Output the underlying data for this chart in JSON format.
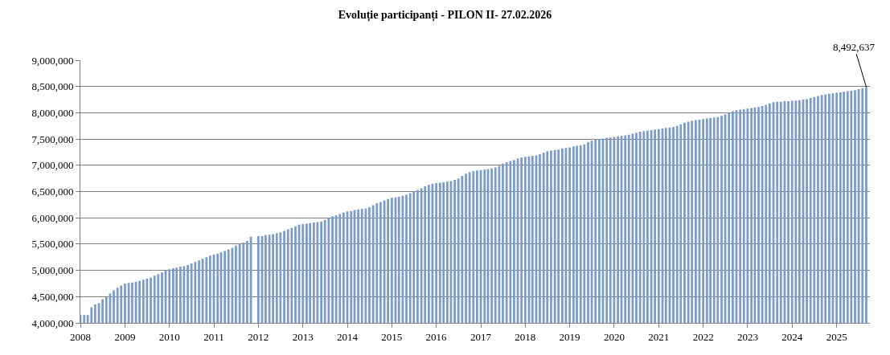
{
  "chart_data": {
    "type": "bar",
    "title": "Evoluție participanți - PILON II- 27.02.2026",
    "x": [
      "2008-01",
      "2008-02",
      "2008-03",
      "2008-04",
      "2008-05",
      "2008-06",
      "2008-07",
      "2008-08",
      "2008-09",
      "2008-10",
      "2008-11",
      "2008-12",
      "2009-01",
      "2009-02",
      "2009-03",
      "2009-04",
      "2009-05",
      "2009-06",
      "2009-07",
      "2009-08",
      "2009-09",
      "2009-10",
      "2009-11",
      "2009-12",
      "2010-01",
      "2010-02",
      "2010-03",
      "2010-04",
      "2010-05",
      "2010-06",
      "2010-07",
      "2010-08",
      "2010-09",
      "2010-10",
      "2010-11",
      "2010-12",
      "2011-01",
      "2011-02",
      "2011-03",
      "2011-04",
      "2011-05",
      "2011-06",
      "2011-07",
      "2011-08",
      "2011-09",
      "2011-10",
      "2011-11",
      "2011-12",
      "2012-01",
      "2012-02",
      "2012-03",
      "2012-04",
      "2012-05",
      "2012-06",
      "2012-07",
      "2012-08",
      "2012-09",
      "2012-10",
      "2012-11",
      "2012-12",
      "2013-01",
      "2013-02",
      "2013-03",
      "2013-04",
      "2013-05",
      "2013-06",
      "2013-07",
      "2013-08",
      "2013-09",
      "2013-10",
      "2013-11",
      "2013-12",
      "2014-01",
      "2014-02",
      "2014-03",
      "2014-04",
      "2014-05",
      "2014-06",
      "2014-07",
      "2014-08",
      "2014-09",
      "2014-10",
      "2014-11",
      "2014-12",
      "2015-01",
      "2015-02",
      "2015-03",
      "2015-04",
      "2015-05",
      "2015-06",
      "2015-07",
      "2015-08",
      "2015-09",
      "2015-10",
      "2015-11",
      "2015-12",
      "2016-01",
      "2016-02",
      "2016-03",
      "2016-04",
      "2016-05",
      "2016-06",
      "2016-07",
      "2016-08",
      "2016-09",
      "2016-10",
      "2016-11",
      "2016-12",
      "2017-01",
      "2017-02",
      "2017-03",
      "2017-04",
      "2017-05",
      "2017-06",
      "2017-07",
      "2017-08",
      "2017-09",
      "2017-10",
      "2017-11",
      "2017-12",
      "2018-01",
      "2018-02",
      "2018-03",
      "2018-04",
      "2018-05",
      "2018-06",
      "2018-07",
      "2018-08",
      "2018-09",
      "2018-10",
      "2018-11",
      "2018-12",
      "2019-01",
      "2019-02",
      "2019-03",
      "2019-04",
      "2019-05",
      "2019-06",
      "2019-07",
      "2019-08",
      "2019-09",
      "2019-10",
      "2019-11",
      "2019-12",
      "2020-01",
      "2020-02",
      "2020-03",
      "2020-04",
      "2020-05",
      "2020-06",
      "2020-07",
      "2020-08",
      "2020-09",
      "2020-10",
      "2020-11",
      "2020-12",
      "2021-01",
      "2021-02",
      "2021-03",
      "2021-04",
      "2021-05",
      "2021-06",
      "2021-07",
      "2021-08",
      "2021-09",
      "2021-10",
      "2021-11",
      "2021-12",
      "2022-01",
      "2022-02",
      "2022-03",
      "2022-04",
      "2022-05",
      "2022-06",
      "2022-07",
      "2022-08",
      "2022-09",
      "2022-10",
      "2022-11",
      "2022-12",
      "2023-01",
      "2023-02",
      "2023-03",
      "2023-04",
      "2023-05",
      "2023-06",
      "2023-07",
      "2023-08",
      "2023-09",
      "2023-10",
      "2023-11",
      "2023-12",
      "2024-01",
      "2024-02",
      "2024-03",
      "2024-04",
      "2024-05",
      "2024-06",
      "2024-07",
      "2024-08",
      "2024-09",
      "2024-10",
      "2024-11",
      "2024-12",
      "2025-01",
      "2025-02",
      "2025-03",
      "2025-04",
      "2025-05",
      "2025-06",
      "2025-07",
      "2025-08",
      "2025-09"
    ],
    "values": [
      4150000,
      4150000,
      4150000,
      4300000,
      4350000,
      4380000,
      4450000,
      4500000,
      4560000,
      4620000,
      4670000,
      4710000,
      4750000,
      4760000,
      4770000,
      4780000,
      4800000,
      4820000,
      4840000,
      4860000,
      4900000,
      4930000,
      4960000,
      5000000,
      5020000,
      5040000,
      5050000,
      5070000,
      5080000,
      5100000,
      5130000,
      5160000,
      5190000,
      5220000,
      5250000,
      5280000,
      5300000,
      5320000,
      5340000,
      5370000,
      5400000,
      5430000,
      5470000,
      5510000,
      5530000,
      5560000,
      5640000,
      null,
      5650000,
      5650000,
      5670000,
      5680000,
      5690000,
      5710000,
      5720000,
      5750000,
      5780000,
      5810000,
      5840000,
      5870000,
      5880000,
      5890000,
      5900000,
      5910000,
      5920000,
      5930000,
      5960000,
      6000000,
      6030000,
      6050000,
      6070000,
      6100000,
      6120000,
      6130000,
      6150000,
      6160000,
      6170000,
      6180000,
      6200000,
      6240000,
      6280000,
      6300000,
      6330000,
      6360000,
      6380000,
      6390000,
      6400000,
      6420000,
      6440000,
      6470000,
      6500000,
      6530000,
      6560000,
      6600000,
      6630000,
      6650000,
      6660000,
      6670000,
      6680000,
      6690000,
      6700000,
      6720000,
      6750000,
      6800000,
      6840000,
      6870000,
      6890000,
      6900000,
      6910000,
      6920000,
      6930000,
      6940000,
      6960000,
      6990000,
      7030000,
      7060000,
      7080000,
      7100000,
      7130000,
      7150000,
      7160000,
      7170000,
      7180000,
      7190000,
      7210000,
      7240000,
      7270000,
      7280000,
      7290000,
      7300000,
      7320000,
      7330000,
      7340000,
      7360000,
      7370000,
      7380000,
      7400000,
      7440000,
      7470000,
      7490000,
      7500000,
      7510000,
      7520000,
      7530000,
      7540000,
      7550000,
      7560000,
      7570000,
      7580000,
      7600000,
      7620000,
      7640000,
      7650000,
      7660000,
      7670000,
      7680000,
      7690000,
      7700000,
      7710000,
      7720000,
      7730000,
      7750000,
      7780000,
      7810000,
      7830000,
      7850000,
      7860000,
      7870000,
      7880000,
      7890000,
      7900000,
      7910000,
      7920000,
      7940000,
      7970000,
      8000000,
      8030000,
      8050000,
      8060000,
      8070000,
      8080000,
      8090000,
      8100000,
      8110000,
      8130000,
      8150000,
      8180000,
      8200000,
      8210000,
      8210000,
      8220000,
      8220000,
      8230000,
      8230000,
      8240000,
      8250000,
      8260000,
      8280000,
      8300000,
      8320000,
      8340000,
      8350000,
      8360000,
      8370000,
      8380000,
      8390000,
      8400000,
      8410000,
      8420000,
      8430000,
      8450000,
      8470000,
      8492637
    ],
    "color": "#7b9bcb",
    "xlim": [
      "2008-01-01",
      "2025-10-01"
    ],
    "xticks": [
      "2008",
      "2009",
      "2010",
      "2011",
      "2012",
      "2013",
      "2014",
      "2015",
      "2016",
      "2017",
      "2018",
      "2019",
      "2020",
      "2021",
      "2022",
      "2023",
      "2024",
      "2025"
    ],
    "ylim": [
      4000000,
      9000000
    ],
    "yticks": [
      {
        "value": 4000000,
        "label": "4,000,000"
      },
      {
        "value": 4500000,
        "label": "4,500,000"
      },
      {
        "value": 5000000,
        "label": "5,000,000"
      },
      {
        "value": 5500000,
        "label": "5,500,000"
      },
      {
        "value": 6000000,
        "label": "6,000,000"
      },
      {
        "value": 6500000,
        "label": "6,500,000"
      },
      {
        "value": 7000000,
        "label": "7,000,000"
      },
      {
        "value": 7500000,
        "label": "7,500,000"
      },
      {
        "value": 8000000,
        "label": "8,000,000"
      },
      {
        "value": 8500000,
        "label": "8,500,000"
      },
      {
        "value": 9000000,
        "label": "9,000,000"
      }
    ],
    "grid": "y",
    "annotations": [
      {
        "text": "8,492,637",
        "x": "2025-09",
        "y": 8492637
      }
    ]
  }
}
